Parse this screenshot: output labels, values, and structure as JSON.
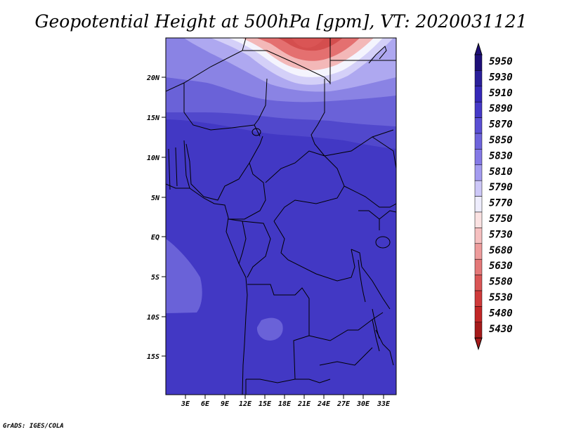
{
  "title": "Geopotential Height at 500hPa [gpm], VT: 2020031121",
  "credit": "GrADS: IGES/COLA",
  "map": {
    "lat_ticks": [
      "20N",
      "15N",
      "10N",
      "5N",
      "EQ",
      "5S",
      "10S",
      "15S"
    ],
    "lon_ticks": [
      "3E",
      "6E",
      "9E",
      "12E",
      "15E",
      "18E",
      "21E",
      "24E",
      "27E",
      "30E",
      "33E"
    ]
  },
  "colorbar": {
    "levels": [
      "5950",
      "5930",
      "5910",
      "5890",
      "5870",
      "5850",
      "5830",
      "5810",
      "5790",
      "5770",
      "5750",
      "5730",
      "5680",
      "5630",
      "5580",
      "5530",
      "5480",
      "5430"
    ],
    "colors": [
      "#1e0f78",
      "#2a1f9a",
      "#3528b8",
      "#4539c8",
      "#5a4fd4",
      "#6e64dc",
      "#8479e6",
      "#a49cf0",
      "#cdc8f8",
      "#eeedfd",
      "#fbe2e2",
      "#f6c0c0",
      "#ee9c9c",
      "#e47878",
      "#da5555",
      "#cf3a3a",
      "#c22626",
      "#a51a1a"
    ]
  },
  "palette": {
    "base": "#4238c4",
    "medium": "#6a62d8",
    "light": "#8a83e4",
    "pale": "#aea8f0",
    "lightest": "#d4d0f8",
    "white": "#f4f4fd",
    "pink": "#f3b8b8",
    "red": "#e47070",
    "darkred": "#d44e4e"
  }
}
